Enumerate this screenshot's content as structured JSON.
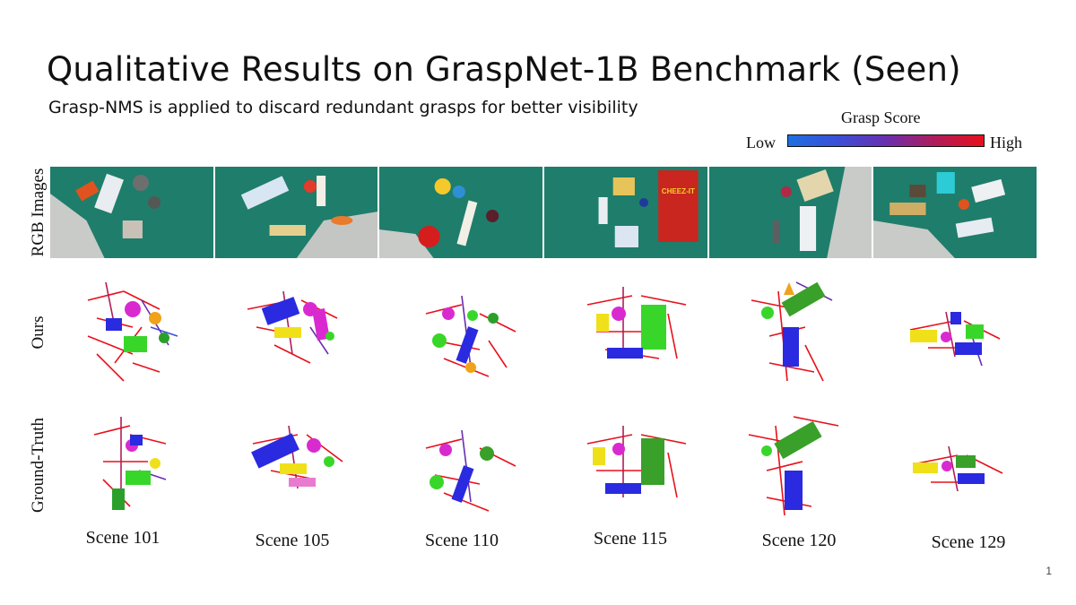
{
  "slide": {
    "title": "Qualitative Results on GraspNet-1B Benchmark (Seen)",
    "subtitle": "Grasp-NMS is applied to discard redundant grasps for better visibility",
    "page_number": "1"
  },
  "legend": {
    "title": "Grasp Score",
    "low": "Low",
    "high": "High",
    "colors": [
      "#1f6fe0",
      "#6a2fb0",
      "#e8101c"
    ]
  },
  "rows": {
    "rgb": "RGB Images",
    "ours": "Ours",
    "gt": "Ground-Truth"
  },
  "scenes": [
    "Scene 101",
    "Scene 105",
    "Scene 110",
    "Scene 115",
    "Scene 120",
    "Scene 129"
  ],
  "rgb_images": {
    "scene_115_box_label": "CHEEZ-IT"
  }
}
